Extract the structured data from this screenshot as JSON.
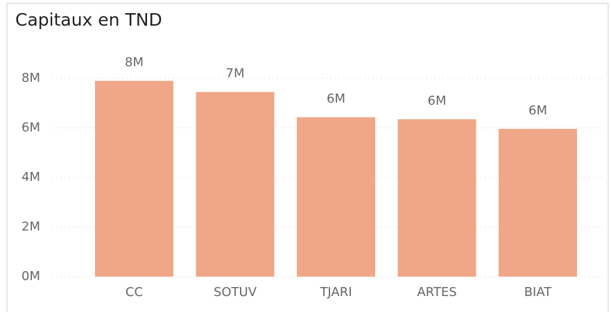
{
  "chart_data": {
    "type": "bar",
    "title": "Capitaux en TND",
    "categories": [
      "CC",
      "SOTUV",
      "TJARI",
      "ARTES",
      "BIAT"
    ],
    "values": [
      7900000,
      7450000,
      6430000,
      6350000,
      5960000
    ],
    "value_labels": [
      "8M",
      "7M",
      "6M",
      "6M",
      "6M"
    ],
    "color": "#f0a787",
    "ylim": [
      0,
      8000000
    ],
    "yticks": [
      {
        "value": 0,
        "label": "0M"
      },
      {
        "value": 2000000,
        "label": "2M"
      },
      {
        "value": 4000000,
        "label": "4M"
      },
      {
        "value": 6000000,
        "label": "6M"
      },
      {
        "value": 8000000,
        "label": "8M"
      }
    ],
    "grid": true
  }
}
